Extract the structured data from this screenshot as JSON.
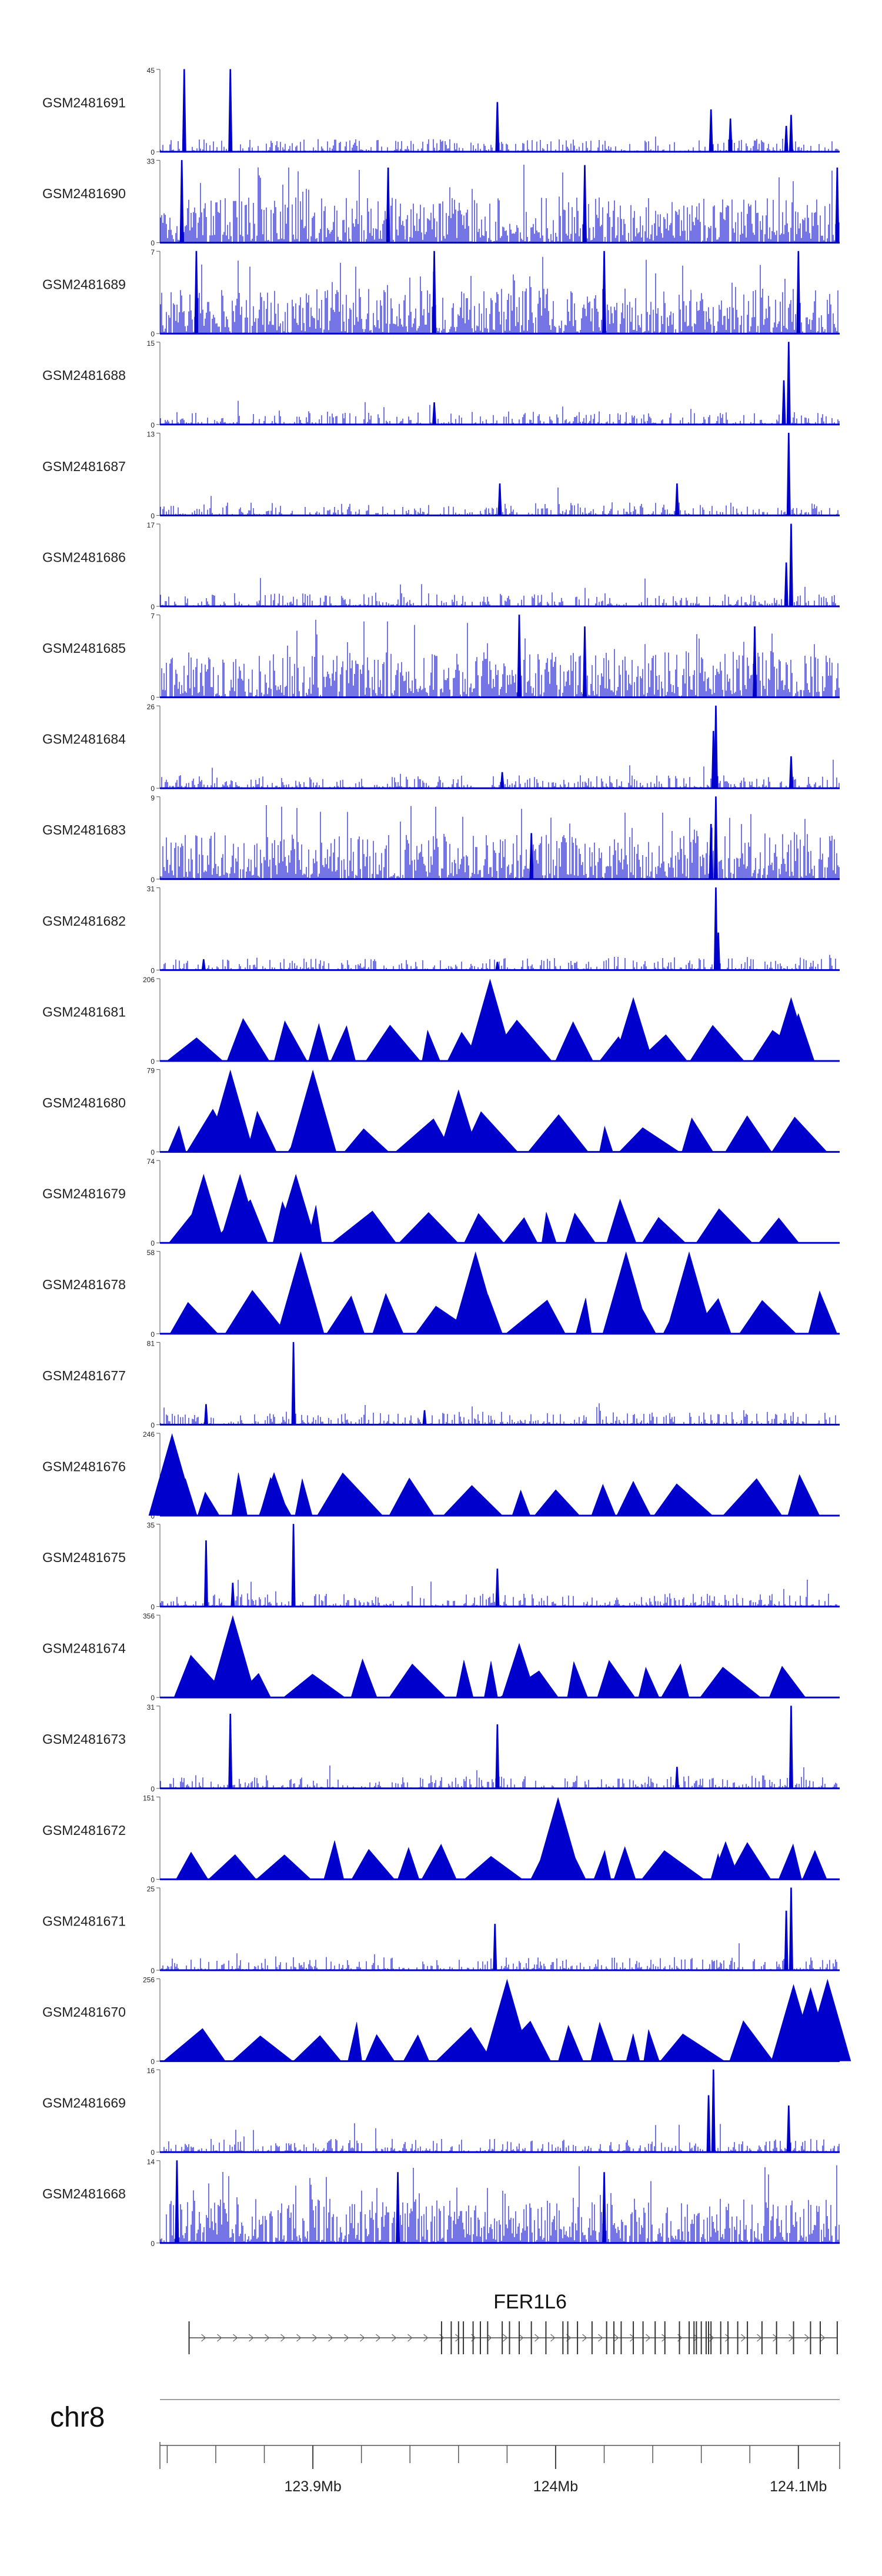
{
  "chart_data": {
    "type": "area",
    "title": "",
    "region": {
      "chromosome": "chr8",
      "start_mb": 123.837,
      "end_mb": 124.117
    },
    "color": "#0000cc",
    "tracks": [
      {
        "name": "GSM2481691",
        "ymax": 45,
        "ymin": 0,
        "style": "spiky",
        "peaks": [
          [
            123.847,
            45
          ],
          [
            123.866,
            45
          ],
          [
            123.976,
            27
          ],
          [
            124.064,
            23
          ],
          [
            124.072,
            18
          ],
          [
            124.097,
            20
          ],
          [
            124.095,
            14
          ]
        ]
      },
      {
        "name": "GSM2481690",
        "ymax": 33,
        "ymin": 0,
        "style": "dense",
        "peaks": [
          [
            123.846,
            33
          ],
          [
            123.931,
            30
          ],
          [
            124.012,
            31
          ],
          [
            124.116,
            30
          ]
        ]
      },
      {
        "name": "GSM2481689",
        "ymax": 7,
        "ymin": 0,
        "style": "dense",
        "peaks": [
          [
            123.852,
            7
          ],
          [
            123.95,
            7
          ],
          [
            124.02,
            7
          ],
          [
            124.1,
            7
          ]
        ]
      },
      {
        "name": "GSM2481688",
        "ymax": 15,
        "ymin": 0,
        "style": "spiky",
        "peaks": [
          [
            124.096,
            15
          ],
          [
            124.094,
            8
          ],
          [
            123.95,
            4
          ]
        ]
      },
      {
        "name": "GSM2481687",
        "ymax": 13,
        "ymin": 0,
        "style": "spiky",
        "peaks": [
          [
            124.096,
            13
          ],
          [
            123.977,
            5
          ],
          [
            124.05,
            5
          ]
        ]
      },
      {
        "name": "GSM2481686",
        "ymax": 17,
        "ymin": 0,
        "style": "spiky",
        "peaks": [
          [
            124.097,
            17
          ],
          [
            124.095,
            9
          ]
        ]
      },
      {
        "name": "GSM2481685",
        "ymax": 7,
        "ymin": 0,
        "style": "dense",
        "peaks": [
          [
            123.985,
            7
          ],
          [
            124.012,
            6
          ],
          [
            124.082,
            6
          ]
        ]
      },
      {
        "name": "GSM2481684",
        "ymax": 26,
        "ymin": 0,
        "style": "spiky",
        "peaks": [
          [
            124.066,
            26
          ],
          [
            124.065,
            18
          ],
          [
            124.097,
            10
          ],
          [
            123.978,
            5
          ]
        ]
      },
      {
        "name": "GSM2481683",
        "ymax": 9,
        "ymin": 0,
        "style": "dense",
        "peaks": [
          [
            124.066,
            9
          ],
          [
            124.064,
            6
          ],
          [
            123.99,
            5
          ]
        ]
      },
      {
        "name": "GSM2481682",
        "ymax": 31,
        "ymin": 0,
        "style": "spiky",
        "peaks": [
          [
            124.066,
            31
          ],
          [
            124.067,
            14
          ],
          [
            123.855,
            4
          ],
          [
            123.976,
            3
          ]
        ]
      },
      {
        "name": "GSM2481681",
        "ymax": 206,
        "ymin": 0,
        "style": "triangles",
        "peaks": [
          [
            123.973,
            206
          ],
          [
            124.032,
            160
          ],
          [
            124.097,
            160
          ],
          [
            124.1,
            120
          ]
        ]
      },
      {
        "name": "GSM2481680",
        "ymax": 79,
        "ymin": 0,
        "style": "triangles",
        "peaks": [
          [
            123.866,
            79
          ],
          [
            123.9,
            79
          ],
          [
            123.96,
            60
          ]
        ]
      },
      {
        "name": "GSM2481679",
        "ymax": 74,
        "ymin": 0,
        "style": "triangles",
        "peaks": [
          [
            123.855,
            62
          ],
          [
            123.87,
            62
          ],
          [
            123.893,
            62
          ]
        ]
      },
      {
        "name": "GSM2481678",
        "ymax": 58,
        "ymin": 0,
        "style": "triangles",
        "peaks": [
          [
            123.895,
            58
          ],
          [
            123.967,
            58
          ],
          [
            124.029,
            58
          ],
          [
            124.055,
            58
          ]
        ]
      },
      {
        "name": "GSM2481677",
        "ymax": 81,
        "ymin": 0,
        "style": "spiky",
        "peaks": [
          [
            123.892,
            81
          ],
          [
            123.856,
            20
          ],
          [
            123.946,
            14
          ]
        ]
      },
      {
        "name": "GSM2481676",
        "ymax": 246,
        "ymin": 0,
        "style": "triangles",
        "peaks": [
          [
            123.842,
            246
          ],
          [
            123.884,
            130
          ]
        ]
      },
      {
        "name": "GSM2481675",
        "ymax": 35,
        "ymin": 0,
        "style": "spiky",
        "peaks": [
          [
            123.892,
            35
          ],
          [
            123.856,
            28
          ],
          [
            123.976,
            16
          ],
          [
            123.867,
            10
          ]
        ]
      },
      {
        "name": "GSM2481674",
        "ymax": 356,
        "ymin": 0,
        "style": "triangles",
        "peaks": [
          [
            123.867,
            356
          ],
          [
            123.985,
            236
          ]
        ]
      },
      {
        "name": "GSM2481673",
        "ymax": 31,
        "ymin": 0,
        "style": "spiky",
        "peaks": [
          [
            124.097,
            31
          ],
          [
            123.866,
            28
          ],
          [
            123.976,
            24
          ],
          [
            124.05,
            8
          ]
        ]
      },
      {
        "name": "GSM2481672",
        "ymax": 151,
        "ymin": 0,
        "style": "triangles",
        "peaks": [
          [
            124.001,
            151
          ],
          [
            124.07,
            70
          ]
        ]
      },
      {
        "name": "GSM2481671",
        "ymax": 25,
        "ymin": 0,
        "style": "spiky",
        "peaks": [
          [
            124.097,
            25
          ],
          [
            124.095,
            18
          ],
          [
            123.975,
            14
          ]
        ]
      },
      {
        "name": "GSM2481670",
        "ymax": 256,
        "ymin": 0,
        "style": "triangles",
        "peaks": [
          [
            123.98,
            256
          ],
          [
            124.112,
            256
          ],
          [
            124.098,
            240
          ],
          [
            124.105,
            230
          ]
        ]
      },
      {
        "name": "GSM2481669",
        "ymax": 16,
        "ymin": 0,
        "style": "spiky",
        "peaks": [
          [
            124.065,
            16
          ],
          [
            124.063,
            11
          ],
          [
            124.096,
            9
          ]
        ]
      },
      {
        "name": "GSM2481668",
        "ymax": 14,
        "ymin": 0,
        "style": "dense",
        "peaks": [
          [
            123.844,
            14
          ],
          [
            123.935,
            12
          ],
          [
            124.02,
            12
          ]
        ]
      }
    ],
    "gene": {
      "name": "FER1L6",
      "start_mb": 123.849,
      "end_mb": 124.116,
      "strand": "+",
      "exons_mb": [
        123.849,
        123.953,
        123.957,
        123.96,
        123.962,
        123.966,
        123.969,
        123.972,
        123.978,
        123.981,
        123.985,
        123.99,
        123.996,
        124.003,
        124.005,
        124.009,
        124.015,
        124.021,
        124.024,
        124.027,
        124.032,
        124.036,
        124.041,
        124.045,
        124.051,
        124.055,
        124.057,
        124.058,
        124.06,
        124.062,
        124.063,
        124.064,
        124.068,
        124.071,
        124.075,
        124.079,
        124.085,
        124.091,
        124.098,
        124.105,
        124.109,
        124.116
      ]
    },
    "x_axis": {
      "label": "chr8",
      "ticks_mb": [
        123.9,
        124.0,
        124.1
      ],
      "tick_labels": [
        "123.9Mb",
        "124Mb",
        "124.1Mb"
      ],
      "minor_step_mb": 0.02
    }
  }
}
